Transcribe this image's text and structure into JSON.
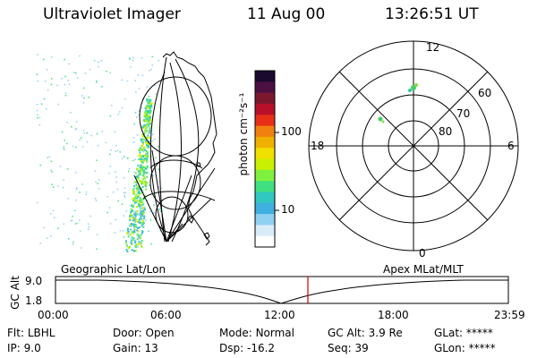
{
  "header": {
    "instrument": "Ultraviolet Imager",
    "date": "11 Aug 00",
    "time": "13:26:51 UT"
  },
  "colorbar": {
    "unit_label": "photon cm⁻²s⁻¹",
    "ticks": [
      "100",
      "10"
    ],
    "scale": "log",
    "colors": [
      "#1a0a2e",
      "#4b1040",
      "#7a1830",
      "#b8102a",
      "#e83018",
      "#f08010",
      "#f0b000",
      "#f0e000",
      "#c8f000",
      "#80f040",
      "#40e080",
      "#30c8c0",
      "#40b0e0",
      "#90d0f0",
      "#d8ecf8",
      "#ffffff"
    ]
  },
  "polar": {
    "mlt_labels": [
      "12",
      "18",
      "6",
      "0"
    ],
    "lat_labels": [
      "60",
      "70",
      "80"
    ]
  },
  "timeline": {
    "left_label": "Geographic Lat/Lon",
    "right_label": "Apex MLat/MLT",
    "axis_title": "GC Alt",
    "y_ticks": [
      "9.0",
      "1.8"
    ],
    "x_ticks": [
      "00:00",
      "06:00",
      "12:00",
      "18:00",
      "23:59"
    ],
    "current_marker_color": "#cc0000"
  },
  "info": {
    "row1": [
      {
        "key": "Flt:",
        "value": "LBHL"
      },
      {
        "key": "Door:",
        "value": "Open"
      },
      {
        "key": "Mode:",
        "value": "Normal"
      },
      {
        "key": "GC Alt:",
        "value": "3.9 Re"
      },
      {
        "key": "GLat:",
        "value": "*****"
      }
    ],
    "row2": [
      {
        "key": "IP:",
        "value": "9.0"
      },
      {
        "key": "Gain:",
        "value": "13"
      },
      {
        "key": "Dsp:",
        "value": "-16.2"
      },
      {
        "key": "Seq:",
        "value": "39"
      },
      {
        "key": "GLon:",
        "value": "*****"
      }
    ]
  }
}
